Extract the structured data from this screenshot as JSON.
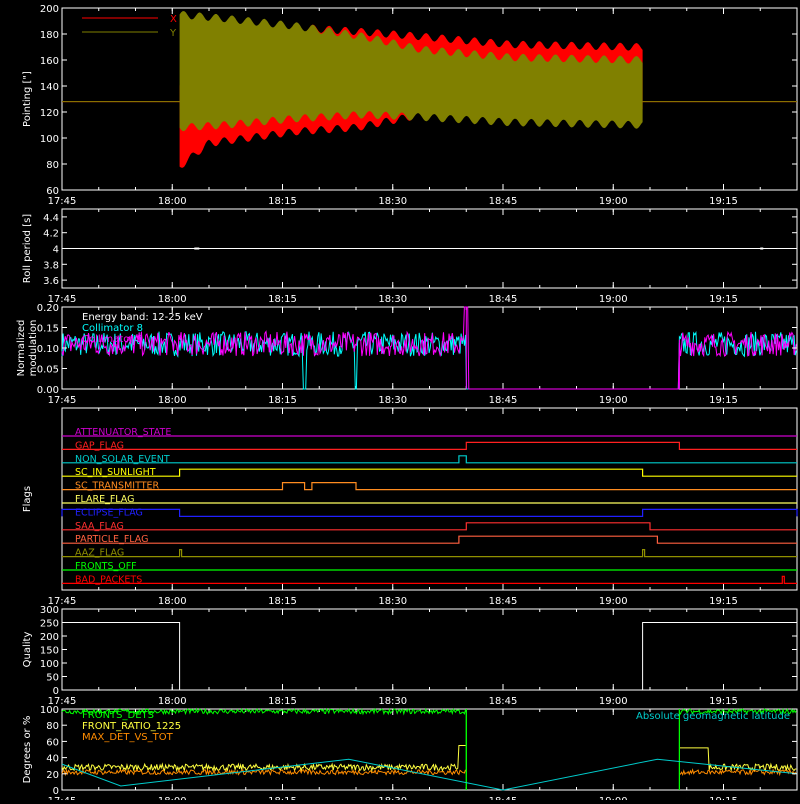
{
  "chart_data": [
    {
      "type": "line",
      "ylabel": "Pointing [\"]",
      "ylim": [
        60,
        200
      ],
      "yticks": [
        60,
        80,
        100,
        120,
        140,
        160,
        180,
        200
      ],
      "x_ticks": [
        "17:45",
        "18:00",
        "18:15",
        "18:30",
        "18:45",
        "19:00",
        "19:15"
      ],
      "series": [
        {
          "name": "X",
          "color": "#ff0000",
          "x_start": "18:01",
          "x_end": "19:04",
          "baseline": 128,
          "envelope_hi": [
            [
              0,
              140
            ],
            [
              4,
              190
            ],
            [
              16,
              185
            ],
            [
              24,
              182
            ],
            [
              33,
              178
            ],
            [
              45,
              172
            ],
            [
              63,
              170
            ]
          ],
          "envelope_lo": [
            [
              0,
              78
            ],
            [
              4,
              96
            ],
            [
              16,
              105
            ],
            [
              24,
              108
            ],
            [
              33,
              118
            ],
            [
              45,
              122
            ],
            [
              63,
              120
            ]
          ]
        },
        {
          "name": "Y",
          "color": "#808000",
          "x_start": "18:01",
          "x_end": "19:04",
          "baseline": 128,
          "envelope_hi": [
            [
              0,
              195
            ],
            [
              6,
              192
            ],
            [
              16,
              186
            ],
            [
              25,
              178
            ],
            [
              33,
              168
            ],
            [
              45,
              162
            ],
            [
              63,
              160
            ]
          ],
          "envelope_lo": [
            [
              0,
              108
            ],
            [
              6,
              110
            ],
            [
              16,
              115
            ],
            [
              25,
              118
            ],
            [
              33,
              116
            ],
            [
              45,
              112
            ],
            [
              63,
              110
            ]
          ]
        }
      ]
    },
    {
      "type": "line",
      "ylabel": "Roll period [s]",
      "ylim": [
        3.5,
        4.5
      ],
      "yticks": [
        3.6,
        3.8,
        4.0,
        4.2,
        4.4
      ],
      "x_ticks": [
        "17:45",
        "18:00",
        "18:15",
        "18:30",
        "18:45",
        "19:00",
        "19:15"
      ],
      "series": [
        {
          "name": "",
          "color": "#ffffff",
          "value": 4.0
        }
      ]
    },
    {
      "type": "line",
      "ylabel": "Normalized modulation",
      "ylim": [
        0,
        0.2
      ],
      "yticks": [
        0.0,
        0.05,
        0.1,
        0.15,
        0.2
      ],
      "yticklabels": [
        "0.00",
        "0.05",
        "0.10",
        "0.15",
        "0.20"
      ],
      "x_ticks": [
        "17:45",
        "18:00",
        "18:15",
        "18:30",
        "18:45",
        "19:00",
        "19:15"
      ],
      "annotations": [
        "Energy band: 12-25 keV",
        "Collimator 8",
        "Collimator 9"
      ],
      "series": [
        {
          "name": "Collimator 8",
          "color": "#00ffff",
          "level": 0.11,
          "noise": 0.03,
          "active": [
            [
              "17:45",
              "18:40"
            ],
            [
              "19:09",
              "19:25"
            ]
          ],
          "drops": [
            "18:18",
            "18:25"
          ]
        },
        {
          "name": "Collimator 9",
          "color": "#ff00ff",
          "level": 0.11,
          "noise": 0.03,
          "active": [
            [
              "17:45",
              "18:40"
            ],
            [
              "19:09",
              "19:25"
            ]
          ],
          "spike": "18:40"
        }
      ]
    },
    {
      "type": "line",
      "ylabel": "Flags",
      "x_ticks": [
        "17:45",
        "18:00",
        "18:15",
        "18:30",
        "18:45",
        "19:00",
        "19:15"
      ],
      "flags": [
        {
          "name": "ATTENUATOR_STATE",
          "color": "#cc00cc",
          "highs": []
        },
        {
          "name": "GAP_FLAG",
          "color": "#ff2020",
          "highs": [
            [
              "18:40",
              "19:09"
            ]
          ]
        },
        {
          "name": "NON_SOLAR_EVENT",
          "color": "#00cccc",
          "highs": [
            [
              "18:39",
              "18:40"
            ]
          ]
        },
        {
          "name": "SC_IN_SUNLIGHT",
          "color": "#ffff00",
          "highs": [
            [
              "18:01",
              "19:04"
            ]
          ]
        },
        {
          "name": "SC_TRANSMITTER",
          "color": "#ff8c20",
          "highs": [
            [
              "18:15",
              "18:18"
            ],
            [
              "18:19",
              "18:25"
            ]
          ]
        },
        {
          "name": "FLARE_FLAG",
          "color": "#ffff60",
          "highs": []
        },
        {
          "name": "ECLIPSE_FLAG",
          "color": "#2020ff",
          "highs": [
            [
              "17:45",
              "18:01"
            ],
            [
              "19:04",
              "19:25"
            ]
          ]
        },
        {
          "name": "SAA_FLAG",
          "color": "#ff3030",
          "highs": [
            [
              "18:40",
              "19:05"
            ]
          ]
        },
        {
          "name": "PARTICLE_FLAG",
          "color": "#ff6040",
          "highs": [
            [
              "18:39",
              "19:06"
            ]
          ]
        },
        {
          "name": "AAZ_FLAG",
          "color": "#909000",
          "highs": [
            [
              "18:01",
              "18:01"
            ],
            [
              "19:04",
              "19:04"
            ]
          ]
        },
        {
          "name": "FRONTS_OFF",
          "color": "#00ff00",
          "highs": []
        },
        {
          "name": "BAD_PACKETS",
          "color": "#ff0000",
          "highs": [
            [
              "19:23",
              "19:23"
            ]
          ]
        }
      ]
    },
    {
      "type": "line",
      "ylabel": "Quality",
      "ylim": [
        0,
        300
      ],
      "yticks": [
        0,
        50,
        100,
        150,
        200,
        250,
        300
      ],
      "x_ticks": [
        "17:45",
        "18:00",
        "18:15",
        "18:30",
        "18:45",
        "19:00",
        "19:15"
      ],
      "series": [
        {
          "name": "",
          "color": "#ffffff",
          "steps": [
            [
              "17:45",
              250
            ],
            [
              "18:01",
              0
            ],
            [
              "19:04",
              250
            ],
            [
              "19:25",
              250
            ]
          ]
        }
      ]
    },
    {
      "type": "line",
      "ylabel": "Degrees or %",
      "ylim": [
        0,
        100
      ],
      "yticks": [
        0,
        20,
        40,
        60,
        80,
        100
      ],
      "x_ticks": [
        "17:45",
        "18:00",
        "18:15",
        "18:30",
        "18:45",
        "19:00",
        "19:15"
      ],
      "series": [
        {
          "name": "FRONT_RATIO_1225",
          "color": "#ffff40",
          "level": 28,
          "noise": 4,
          "gap": [
            "18:40",
            "19:09"
          ]
        },
        {
          "name": "FRONTS_DETS",
          "color": "#00ff00",
          "level": 97,
          "noise": 3,
          "gap": [
            "18:40",
            "19:09"
          ]
        },
        {
          "name": "MAX_DET_VS_TOT",
          "color": "#ff8c00",
          "level": 22,
          "noise": 3,
          "gap": [
            "18:40",
            "19:09"
          ]
        },
        {
          "name": "Absolute geomagnetic latitude",
          "color": "#00cccc",
          "points": [
            [
              "17:45",
              32
            ],
            [
              "17:53",
              5
            ],
            [
              "18:24",
              38
            ],
            [
              "18:45",
              0
            ],
            [
              "19:06",
              38
            ],
            [
              "19:25",
              20
            ]
          ]
        }
      ]
    }
  ]
}
